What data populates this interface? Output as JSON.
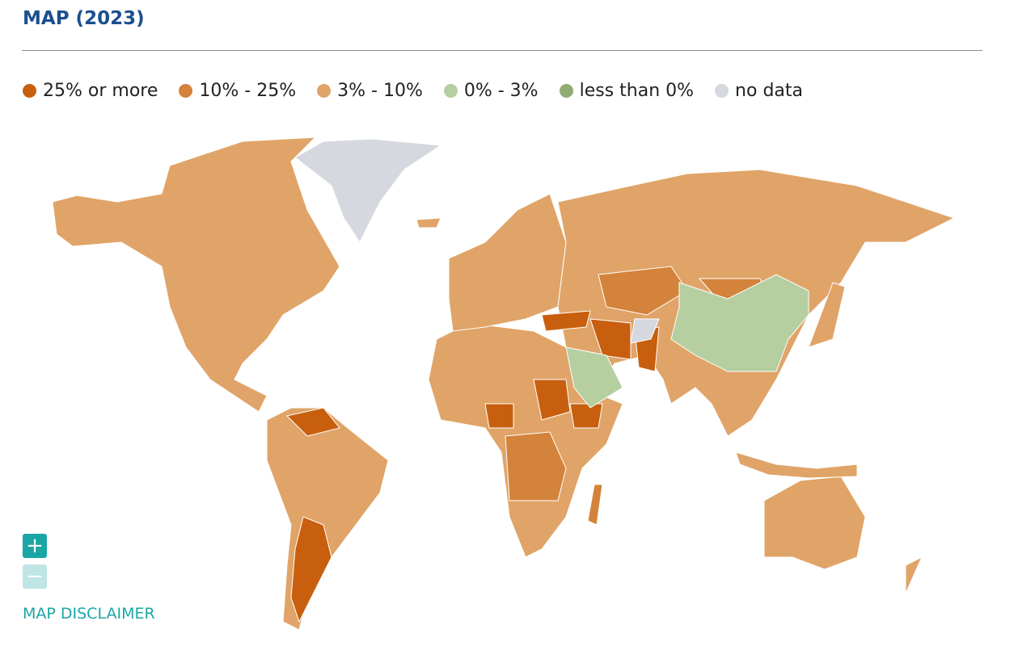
{
  "header": {
    "title": "MAP (2023)"
  },
  "legend": [
    {
      "label": "25% or more",
      "color": "#c85f0e"
    },
    {
      "label": "10% - 25%",
      "color": "#d4833c"
    },
    {
      "label": "3% - 10%",
      "color": "#e0a468"
    },
    {
      "label": "0% - 3%",
      "color": "#b5cfa0"
    },
    {
      "label": "less than 0%",
      "color": "#8fac72"
    },
    {
      "label": "no data",
      "color": "#d5d8de"
    }
  ],
  "controls": {
    "zoom_in": "+",
    "zoom_out": "−",
    "disclaimer": "MAP DISCLAIMER"
  }
}
